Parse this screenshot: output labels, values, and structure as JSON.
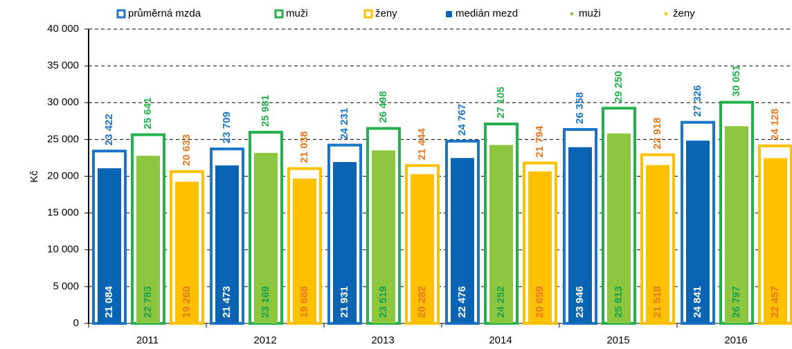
{
  "chart_data": {
    "type": "bar",
    "y_label": "Kč",
    "categories": [
      "2011",
      "2012",
      "2013",
      "2014",
      "2015",
      "2016"
    ],
    "ylim": [
      0,
      40000
    ],
    "yticks": [
      0,
      {
        "value": 5000,
        "label": "5 000"
      },
      {
        "value": 10000,
        "label": "10 000"
      },
      {
        "value": 15000,
        "label": "15 000"
      },
      {
        "value": 20000,
        "label": "20 000"
      },
      {
        "value": 25000,
        "label": "25 000"
      },
      {
        "value": 30000,
        "label": "30 000"
      },
      {
        "value": 35000,
        "label": "35 000"
      },
      {
        "value": 40000,
        "label": "40 000"
      }
    ],
    "grid": true,
    "legend": "top",
    "series": [
      {
        "name": "průměrná mzda",
        "style": "outline",
        "color": "#1a75c8",
        "label_color": "#1a75c8",
        "values": [
          23422,
          23709,
          24231,
          24767,
          26358,
          27326
        ],
        "value_labels": [
          "23 422",
          "23 709",
          "24 231",
          "24 767",
          "26 358",
          "27 326"
        ]
      },
      {
        "name": "muži",
        "style": "outline",
        "color": "#22b14c",
        "label_color": "#22b14c",
        "values": [
          25641,
          25981,
          26498,
          27105,
          29250,
          30051
        ],
        "value_labels": [
          "25 641",
          "25 981",
          "26 498",
          "27 105",
          "29 250",
          "30 051"
        ]
      },
      {
        "name": "ženy",
        "style": "outline",
        "color": "#ffc000",
        "label_color": "#e87722",
        "values": [
          20633,
          21038,
          21444,
          21794,
          22918,
          24128
        ],
        "value_labels": [
          "20 633",
          "21 038",
          "21 444",
          "21 794",
          "22 918",
          "24 128"
        ]
      },
      {
        "name": "medián mezd",
        "style": "fill",
        "color": "#0a64b4",
        "label_color": "#ffffff",
        "values": [
          21084,
          21473,
          21931,
          22476,
          23946,
          24841
        ],
        "value_labels": [
          "21 084",
          "21 473",
          "21 931",
          "22 476",
          "23 946",
          "24 841"
        ]
      },
      {
        "name": "muži",
        "style": "fill",
        "color": "#8cc63f",
        "label_color": "#1fa04a",
        "values": [
          22783,
          23169,
          23519,
          24252,
          25813,
          26797
        ],
        "value_labels": [
          "22 783",
          "23 169",
          "23 519",
          "24 252",
          "25 813",
          "26 797"
        ]
      },
      {
        "name": "ženy",
        "style": "fill",
        "color": "#ffc000",
        "label_color": "#e87722",
        "values": [
          19260,
          19688,
          20282,
          20659,
          21518,
          22457
        ],
        "value_labels": [
          "19 260",
          "19 688",
          "20 282",
          "20 659",
          "21 518",
          "22 457"
        ]
      }
    ]
  }
}
